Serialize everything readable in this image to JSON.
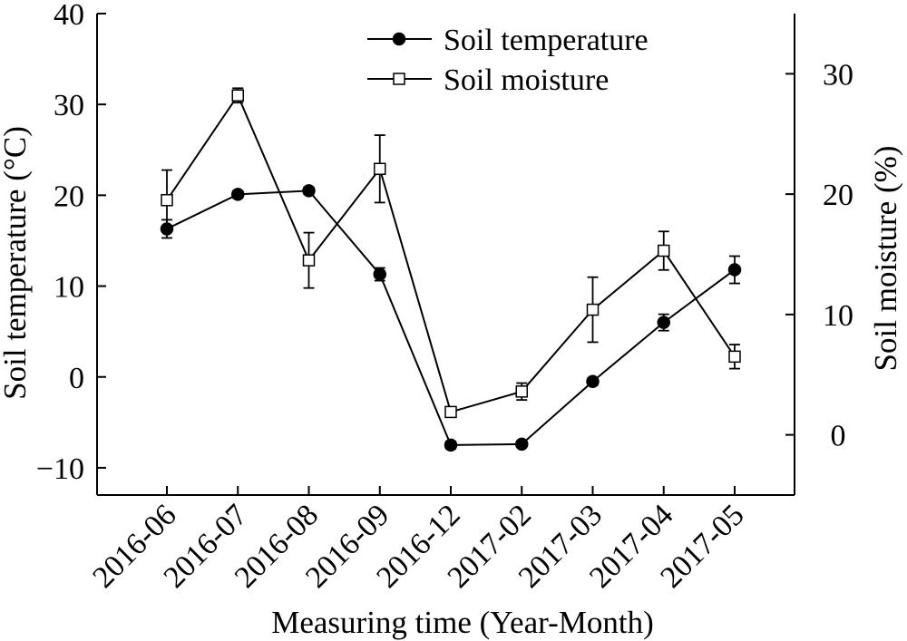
{
  "chart_data": {
    "type": "line",
    "x_title": "Measuring time (Year-Month)",
    "y_left_title": "Soil temperature (°C)",
    "y_right_title": "Soil moisture (%)",
    "categories": [
      "2016-06",
      "2016-07",
      "2016-08",
      "2016-09",
      "2016-12",
      "2017-02",
      "2017-03",
      "2017-04",
      "2017-05"
    ],
    "y_left": {
      "ylim": [
        -13,
        40
      ],
      "ticks": [
        -10,
        0,
        10,
        20,
        30,
        40
      ],
      "tick_labels": [
        "−10",
        "0",
        "10",
        "20",
        "30",
        "40"
      ]
    },
    "y_right": {
      "ylim": [
        -5,
        35
      ],
      "ticks": [
        0,
        10,
        20,
        30
      ],
      "tick_labels": [
        "0",
        "10",
        "20",
        "30"
      ]
    },
    "legend_position": "top-center",
    "series": [
      {
        "name": "Soil temperature",
        "axis": "left",
        "marker": "filled-circle",
        "values": [
          16.3,
          20.1,
          20.5,
          11.3,
          -7.5,
          -7.4,
          -0.5,
          6.0,
          11.8
        ],
        "errors": [
          1.0,
          0.4,
          0.4,
          0.7,
          0.4,
          0.3,
          0.4,
          0.9,
          1.5
        ]
      },
      {
        "name": "Soil moisture",
        "axis": "right",
        "marker": "open-square",
        "values": [
          19.5,
          28.2,
          14.5,
          22.1,
          1.9,
          3.6,
          10.4,
          15.3,
          6.5
        ],
        "errors": [
          2.5,
          0.6,
          2.3,
          2.8,
          0.3,
          0.7,
          2.7,
          1.6,
          1.0
        ]
      }
    ],
    "colors": {
      "line": "#000000",
      "marker_fill_filled": "#000000",
      "marker_fill_open": "#ffffff"
    }
  }
}
